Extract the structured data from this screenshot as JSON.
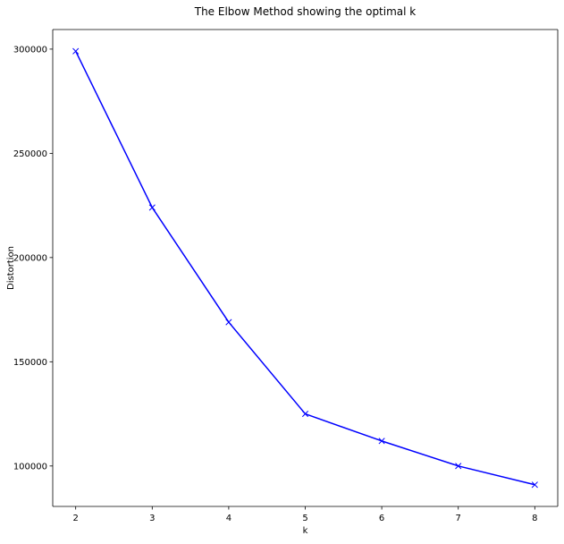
{
  "chart_data": {
    "type": "line",
    "title": "The Elbow Method showing the optimal k",
    "xlabel": "k",
    "ylabel": "Distortion",
    "x": [
      2,
      3,
      4,
      5,
      6,
      7,
      8
    ],
    "series": [
      {
        "values": [
          299000,
          224000,
          169000,
          125000,
          112000,
          100000,
          91000
        ],
        "color": "#0000ff",
        "marker": "x",
        "marker_icon": "x-marker-icon"
      }
    ],
    "xticks": [
      2,
      3,
      4,
      5,
      6,
      7,
      8
    ],
    "xtick_labels": [
      "2",
      "3",
      "4",
      "5",
      "6",
      "7",
      "8"
    ],
    "yticks": [
      100000,
      150000,
      200000,
      250000,
      300000
    ],
    "ytick_labels": [
      "100000",
      "150000",
      "200000",
      "250000",
      "300000"
    ],
    "xlim": [
      1.7,
      8.3
    ],
    "ylim": [
      80600,
      309400
    ],
    "grid": false,
    "legend": "none"
  }
}
